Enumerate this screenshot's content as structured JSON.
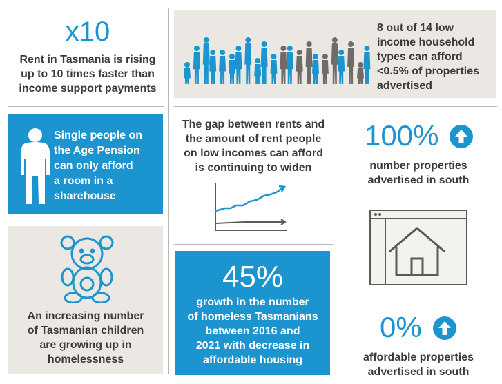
{
  "rent_rising": {
    "stat": "x10",
    "text_lines": [
      "Rent in Tasmania is rising",
      "up to 10 times faster than",
      "income support payments"
    ]
  },
  "households": {
    "text_lines": [
      "8 out of 14 low",
      "income household",
      "types can afford",
      "<0.5% of properties",
      "advertised"
    ]
  },
  "single_people": {
    "text_lines": [
      "Single people on",
      "the Age Pension",
      "can only afford",
      "a room in a",
      "sharehouse"
    ]
  },
  "rent_gap": {
    "text_lines": [
      "The gap between rents and",
      "the amount of rent people",
      "on low incomes can afford",
      "is continuing to widen"
    ]
  },
  "south_100": {
    "stat": "100%",
    "text_lines": [
      "number properties",
      "advertised in south"
    ]
  },
  "children": {
    "text_lines": [
      "An increasing number",
      "of Tasmanian children",
      "are growing up in",
      "homelessness"
    ]
  },
  "homeless_growth": {
    "stat": "45%",
    "text_lines": [
      "growth in the number",
      "of homeless Tasmanians",
      "between 2016 and",
      "2021 with decrease in",
      "affordable housing"
    ]
  },
  "south_0": {
    "stat": "0%",
    "text_lines": [
      "affordable properties",
      "advertised in south"
    ]
  },
  "colors": {
    "accent_blue": "#1b94cf",
    "panel_grey": "#ebe8e4",
    "dark_text": "#3b3b3b"
  },
  "icons": [
    "person-silhouette-icon",
    "crowd-silhouettes-icon",
    "teddy-bear-icon",
    "line-graph-icon",
    "arrow-up-circle-icon",
    "house-on-screen-icon"
  ]
}
